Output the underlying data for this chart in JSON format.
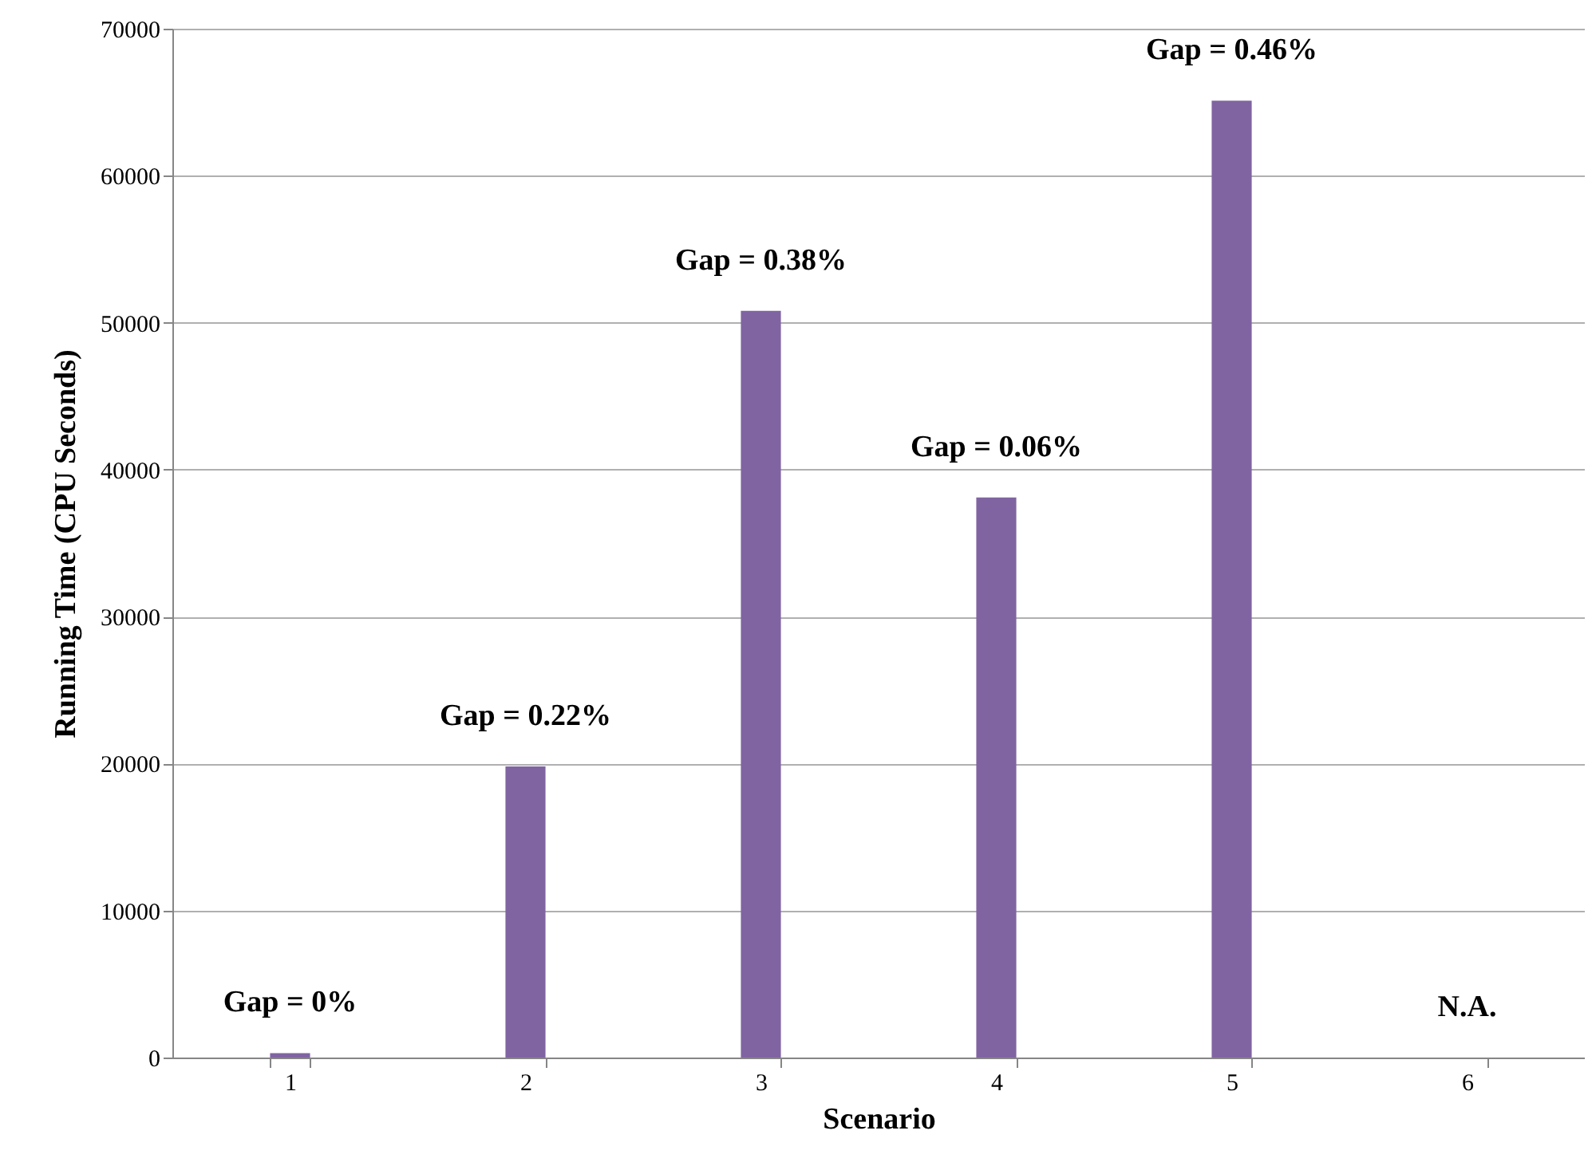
{
  "chart_data": {
    "type": "bar",
    "xlabel": "Scenario",
    "ylabel": "Running Time (CPU Seconds)",
    "categories": [
      "1",
      "2",
      "3",
      "4",
      "5",
      "6"
    ],
    "values": [
      300,
      19800,
      50800,
      38100,
      65100,
      null
    ],
    "color": "#8064a2",
    "ylim": [
      0,
      70000
    ],
    "yticks": [
      0,
      10000,
      20000,
      30000,
      40000,
      50000,
      60000,
      70000
    ],
    "grid": "y",
    "annotations": [
      {
        "text": "Gap = 0%",
        "x": "1",
        "y": 300
      },
      {
        "text": "Gap = 0.22%",
        "x": "2",
        "y": 19800
      },
      {
        "text": "Gap = 0.38%",
        "x": "3",
        "y": 50800
      },
      {
        "text": "Gap = 0.06%",
        "x": "4",
        "y": 38100
      },
      {
        "text": "Gap = 0.46%",
        "x": "5",
        "y": 65100
      },
      "N.A."
    ]
  }
}
